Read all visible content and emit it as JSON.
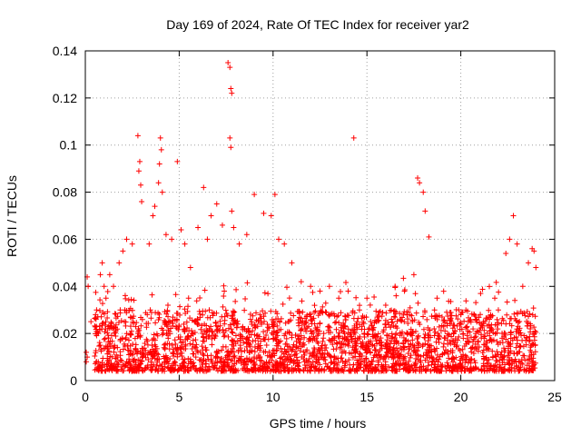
{
  "chart_data": {
    "type": "scatter",
    "title": "Day 169 of 2024, Rate Of TEC Index for receiver yar2",
    "xlabel": "GPS time / hours",
    "ylabel": "ROTI / TECUs",
    "xlim": [
      0,
      25
    ],
    "ylim": [
      0,
      0.14
    ],
    "x_ticks": [
      0,
      5,
      10,
      15,
      20,
      25
    ],
    "x_tick_labels": [
      "0",
      "5",
      "10",
      "15",
      "20",
      "25"
    ],
    "y_ticks": [
      0,
      0.02,
      0.04,
      0.06,
      0.08,
      0.1,
      0.12,
      0.14
    ],
    "y_tick_labels": [
      "0",
      "0.02",
      "0.04",
      "0.06",
      "0.08",
      "0.1",
      "0.12",
      "0.14"
    ],
    "grid": true,
    "marker": "+",
    "color": "#ff0000",
    "series": [
      {
        "name": "yar2",
        "x": [
          0.05,
          0.1,
          0.15,
          0.05,
          0.1,
          0.6,
          0.8,
          0.9,
          1.0,
          1.1,
          1.3,
          1.5,
          1.8,
          2.0,
          2.2,
          2.5,
          2.8,
          2.9,
          2.85,
          2.95,
          3.0,
          3.4,
          3.6,
          3.7,
          3.9,
          4.0,
          4.05,
          3.95,
          4.1,
          4.3,
          4.6,
          4.9,
          5.1,
          5.3,
          5.6,
          6.0,
          6.3,
          6.5,
          6.7,
          7.0,
          7.3,
          7.6,
          7.7,
          7.75,
          7.8,
          7.7,
          7.75,
          7.8,
          7.9,
          8.2,
          8.6,
          9.0,
          9.5,
          9.9,
          10.1,
          10.3,
          10.6,
          11.0,
          11.5,
          12.0,
          12.5,
          13.0,
          13.5,
          14.0,
          14.3,
          14.6,
          15.0,
          15.5,
          16.0,
          16.5,
          17.0,
          17.5,
          17.7,
          17.8,
          18.0,
          18.1,
          18.3,
          18.6,
          19.0,
          19.5,
          20.0,
          20.4,
          20.8,
          21.2,
          21.6,
          22.0,
          22.4,
          22.6,
          22.8,
          23.0,
          23.3,
          23.6,
          23.8,
          23.9,
          24.0,
          0.3,
          0.7,
          1.2,
          2.1,
          3.3,
          4.4,
          5.5,
          6.6,
          7.4,
          8.8,
          9.3,
          10.8,
          11.7,
          12.7,
          13.7,
          15.3,
          16.3,
          17.3,
          18.8,
          19.8,
          20.6,
          21.4,
          22.2,
          23.1,
          23.7
        ],
        "y": [
          0.008,
          0.044,
          0.04,
          0.012,
          0.01,
          0.03,
          0.045,
          0.05,
          0.04,
          0.035,
          0.045,
          0.04,
          0.05,
          0.055,
          0.06,
          0.058,
          0.104,
          0.093,
          0.089,
          0.083,
          0.076,
          0.058,
          0.07,
          0.074,
          0.084,
          0.103,
          0.098,
          0.092,
          0.08,
          0.062,
          0.06,
          0.093,
          0.064,
          0.058,
          0.048,
          0.065,
          0.082,
          0.06,
          0.07,
          0.075,
          0.066,
          0.135,
          0.133,
          0.124,
          0.122,
          0.103,
          0.099,
          0.072,
          0.065,
          0.058,
          0.062,
          0.079,
          0.071,
          0.07,
          0.079,
          0.06,
          0.058,
          0.05,
          0.042,
          0.04,
          0.038,
          0.04,
          0.035,
          0.038,
          0.103,
          0.03,
          0.035,
          0.025,
          0.032,
          0.04,
          0.038,
          0.045,
          0.086,
          0.084,
          0.08,
          0.072,
          0.061,
          0.03,
          0.027,
          0.025,
          0.028,
          0.025,
          0.026,
          0.025,
          0.027,
          0.03,
          0.054,
          0.06,
          0.07,
          0.058,
          0.04,
          0.05,
          0.056,
          0.055,
          0.048,
          0.025,
          0.02,
          0.022,
          0.03,
          0.028,
          0.032,
          0.035,
          0.03,
          0.038,
          0.026,
          0.028,
          0.025,
          0.022,
          0.02,
          0.018,
          0.015,
          0.018,
          0.02,
          0.018,
          0.015,
          0.014,
          0.016,
          0.018,
          0.02,
          0.022
        ]
      }
    ],
    "dense_band": {
      "note": "continuous cloud of points between roughly 0.004 and 0.03 TECU across 0.5 to 24 h",
      "x_start": 0.5,
      "x_end": 24.0,
      "y_low": 0.004,
      "y_high": 0.03
    }
  }
}
